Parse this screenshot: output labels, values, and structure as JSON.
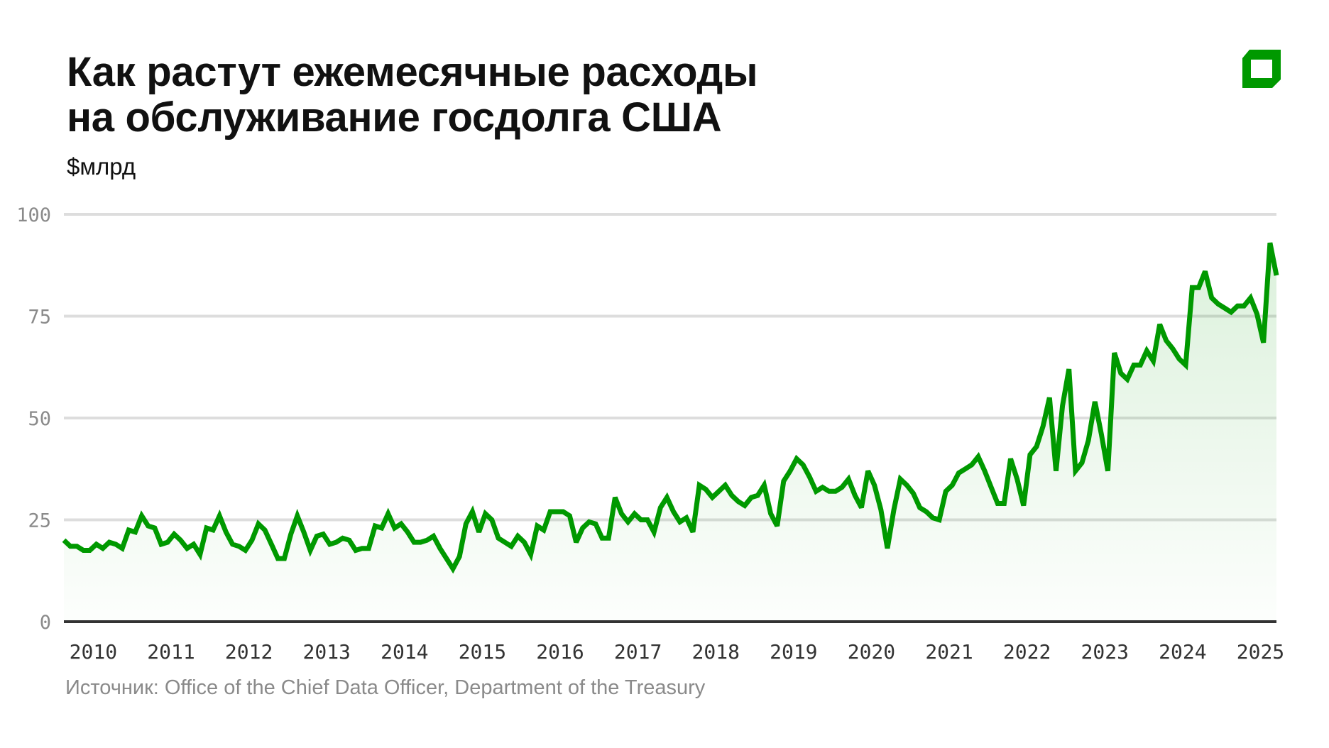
{
  "title_lines": [
    "Как растут ежемесячные расходы",
    "на обслуживание госдолга США"
  ],
  "unit": "$млрд",
  "source": "Источник: Office of the Chief Data Officer, Department of the Treasury",
  "colors": {
    "line": "#009900",
    "grid": "#dddddd",
    "axis": "#333333",
    "logo": "#009900"
  },
  "logo_icon": "green-square-logo-icon",
  "chart_data": {
    "type": "area",
    "title": "Как растут ежемесячные расходы на обслуживание госдолга США",
    "ylabel": "$млрд",
    "ylim": [
      0,
      100
    ],
    "yticks": [
      0,
      25,
      50,
      75,
      100
    ],
    "xticks": [
      "2010",
      "2011",
      "2012",
      "2013",
      "2014",
      "2015",
      "2016",
      "2017",
      "2018",
      "2019",
      "2020",
      "2021",
      "2022",
      "2023",
      "2024",
      "2025"
    ],
    "grid": true,
    "x": [
      "2009-10",
      "2009-11",
      "2009-12",
      "2010-01",
      "2010-02",
      "2010-03",
      "2010-04",
      "2010-05",
      "2010-06",
      "2010-07",
      "2010-08",
      "2010-09",
      "2010-10",
      "2010-11",
      "2010-12",
      "2011-01",
      "2011-02",
      "2011-03",
      "2011-04",
      "2011-05",
      "2011-06",
      "2011-07",
      "2011-08",
      "2011-09",
      "2011-10",
      "2011-11",
      "2011-12",
      "2012-01",
      "2012-02",
      "2012-03",
      "2012-04",
      "2012-05",
      "2012-06",
      "2012-07",
      "2012-08",
      "2012-09",
      "2012-10",
      "2012-11",
      "2012-12",
      "2013-01",
      "2013-02",
      "2013-03",
      "2013-04",
      "2013-05",
      "2013-06",
      "2013-07",
      "2013-08",
      "2013-09",
      "2013-10",
      "2013-11",
      "2013-12",
      "2014-01",
      "2014-02",
      "2014-03",
      "2014-04",
      "2014-05",
      "2014-06",
      "2014-07",
      "2014-08",
      "2014-09",
      "2014-10",
      "2014-11",
      "2014-12",
      "2015-01",
      "2015-02",
      "2015-03",
      "2015-04",
      "2015-05",
      "2015-06",
      "2015-07",
      "2015-08",
      "2015-09",
      "2015-10",
      "2015-11",
      "2015-12",
      "2016-01",
      "2016-02",
      "2016-03",
      "2016-04",
      "2016-05",
      "2016-06",
      "2016-07",
      "2016-08",
      "2016-09",
      "2016-10",
      "2016-11",
      "2016-12",
      "2017-01",
      "2017-02",
      "2017-03",
      "2017-04",
      "2017-05",
      "2017-06",
      "2017-07",
      "2017-08",
      "2017-09",
      "2017-10",
      "2017-11",
      "2017-12",
      "2018-01",
      "2018-02",
      "2018-03",
      "2018-04",
      "2018-05",
      "2018-06",
      "2018-07",
      "2018-08",
      "2018-09",
      "2018-10",
      "2018-11",
      "2018-12",
      "2019-01",
      "2019-02",
      "2019-03",
      "2019-04",
      "2019-05",
      "2019-06",
      "2019-07",
      "2019-08",
      "2019-09",
      "2019-10",
      "2019-11",
      "2019-12",
      "2020-01",
      "2020-02",
      "2020-03",
      "2020-04",
      "2020-05",
      "2020-06",
      "2020-07",
      "2020-08",
      "2020-09",
      "2020-10",
      "2020-11",
      "2020-12",
      "2021-01",
      "2021-02",
      "2021-03",
      "2021-04",
      "2021-05",
      "2021-06",
      "2021-07",
      "2021-08",
      "2021-09",
      "2021-10",
      "2021-11",
      "2021-12",
      "2022-01",
      "2022-02",
      "2022-03",
      "2022-04",
      "2022-05",
      "2022-06",
      "2022-07",
      "2022-08",
      "2022-09",
      "2022-10",
      "2022-11",
      "2022-12",
      "2023-01",
      "2023-02",
      "2023-03",
      "2023-04",
      "2023-05",
      "2023-06",
      "2023-07",
      "2023-08",
      "2023-09",
      "2023-10",
      "2023-11",
      "2023-12",
      "2024-01",
      "2024-02",
      "2024-03",
      "2024-04",
      "2024-05",
      "2024-06",
      "2024-07",
      "2024-08",
      "2024-09",
      "2024-10",
      "2024-11",
      "2024-12",
      "2025-01",
      "2025-02",
      "2025-03",
      "2025-04",
      "2025-05"
    ],
    "values": [
      20,
      18.5,
      18.5,
      17.5,
      17.5,
      19,
      18,
      19.5,
      19,
      18,
      22.5,
      22,
      26,
      23.5,
      23,
      19,
      19.5,
      21.5,
      20,
      18,
      19,
      16.5,
      23,
      22.5,
      26,
      22,
      19,
      18.5,
      17.5,
      20,
      24,
      22.5,
      19,
      15.5,
      15.5,
      21.5,
      26,
      22,
      17.5,
      21,
      21.5,
      19,
      19.5,
      20.5,
      20,
      17.5,
      18,
      18,
      23.5,
      23,
      26.5,
      23,
      24,
      22,
      19.5,
      19.5,
      20,
      21,
      18,
      15.5,
      13,
      16,
      24,
      27,
      22,
      26.5,
      25,
      20.5,
      19.5,
      18.5,
      21,
      19.5,
      16.5,
      23.5,
      22.5,
      27,
      27,
      27,
      26,
      19.5,
      23,
      24.5,
      24,
      20.5,
      20.5,
      30.5,
      26.5,
      24.5,
      26.5,
      25,
      25,
      22,
      28,
      30.5,
      27,
      24.5,
      25.5,
      22,
      33.5,
      32.5,
      30.5,
      32,
      33.5,
      31,
      29.5,
      28.5,
      30.5,
      31,
      33.5,
      26.5,
      23.5,
      34.5,
      37,
      40,
      38.5,
      35.5,
      32,
      33,
      32,
      32,
      33,
      35,
      31,
      28,
      37,
      33.5,
      27.5,
      18,
      27.5,
      35,
      33.5,
      31.5,
      28,
      27,
      25.5,
      25,
      32,
      33.5,
      36.5,
      37.5,
      38.5,
      40.5,
      37,
      33,
      29,
      29,
      40,
      35,
      28.5,
      41,
      43,
      48,
      55,
      37,
      53,
      62,
      37,
      39,
      44.5,
      54,
      46,
      37,
      66,
      61,
      59.5,
      63,
      63,
      66.5,
      64,
      73,
      69,
      67,
      64.5,
      63,
      82,
      82,
      86,
      79.5,
      78,
      77,
      76,
      77.5,
      77.5,
      79.5,
      75.5,
      68.5,
      93,
      85
    ]
  }
}
